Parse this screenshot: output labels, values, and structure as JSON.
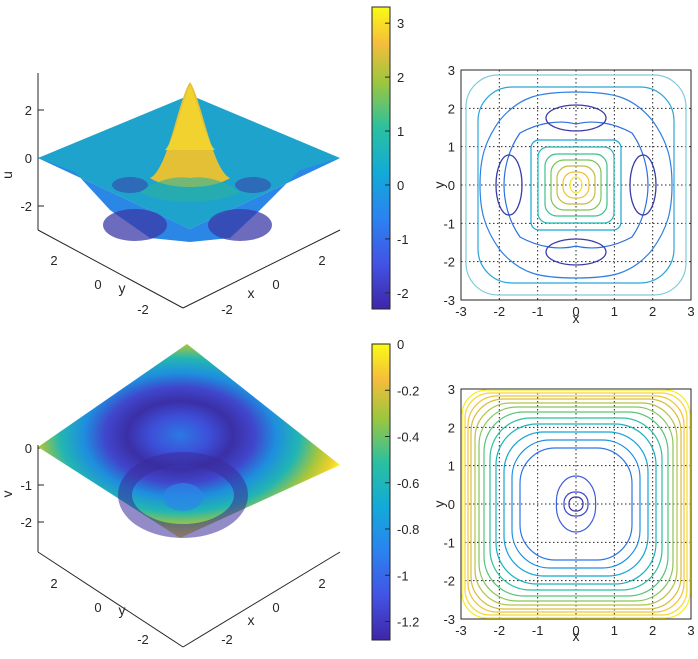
{
  "chart_data": [
    {
      "id": "top-surface",
      "type": "surface",
      "variable": "u",
      "zlabel": "u",
      "xlabel": "x",
      "ylabel": "y",
      "xlim": [
        -3,
        3
      ],
      "ylim": [
        -3,
        3
      ],
      "zlim": [
        -3,
        3
      ],
      "z_ticks": [
        "2",
        "0",
        "-2"
      ],
      "x_ticks": [
        "-2",
        "0",
        "2"
      ],
      "y_ticks": [
        "2",
        "0",
        "-2"
      ],
      "peak": 3.25,
      "min": -2.3,
      "colormap": "parula"
    },
    {
      "id": "top-colorbar",
      "type": "colorbar",
      "range": [
        -2.3,
        3.3
      ],
      "ticks": [
        "3",
        "2",
        "1",
        "0",
        "-1",
        "-2"
      ],
      "tick_values": [
        3,
        2,
        1,
        0,
        -1,
        -2
      ]
    },
    {
      "id": "top-contour",
      "type": "contour",
      "xlabel": "x",
      "ylabel": "y",
      "xlim": [
        -3,
        3
      ],
      "ylim": [
        -3,
        3
      ],
      "x_ticks": [
        "-3",
        "-2",
        "-1",
        "0",
        "1",
        "2",
        "3"
      ],
      "y_ticks": [
        "3",
        "2",
        "1",
        "0",
        "-1",
        "-2",
        "-3"
      ],
      "grid": true
    },
    {
      "id": "bottom-surface",
      "type": "surface",
      "variable": "v",
      "zlabel": "v",
      "xlabel": "x",
      "ylabel": "y",
      "xlim": [
        -3,
        3
      ],
      "ylim": [
        -3,
        3
      ],
      "zlim": [
        -2,
        0
      ],
      "z_ticks": [
        "0",
        "-1",
        "-2"
      ],
      "x_ticks": [
        "-2",
        "0",
        "2"
      ],
      "y_ticks": [
        "2",
        "0",
        "-2"
      ],
      "min": -1.25,
      "max": 0,
      "colormap": "parula"
    },
    {
      "id": "bottom-colorbar",
      "type": "colorbar",
      "range": [
        -1.28,
        0
      ],
      "ticks": [
        "0",
        "-0.2",
        "-0.4",
        "-0.6",
        "-0.8",
        "-1",
        "-1.2"
      ],
      "tick_values": [
        0,
        -0.2,
        -0.4,
        -0.6,
        -0.8,
        -1,
        -1.2
      ]
    },
    {
      "id": "bottom-contour",
      "type": "contour",
      "xlabel": "x",
      "ylabel": "y",
      "xlim": [
        -3,
        3
      ],
      "ylim": [
        -3,
        3
      ],
      "x_ticks": [
        "-3",
        "-2",
        "-1",
        "0",
        "1",
        "2",
        "3"
      ],
      "y_ticks": [
        "3",
        "2",
        "1",
        "0",
        "-1",
        "-2",
        "-3"
      ],
      "grid": true
    }
  ]
}
